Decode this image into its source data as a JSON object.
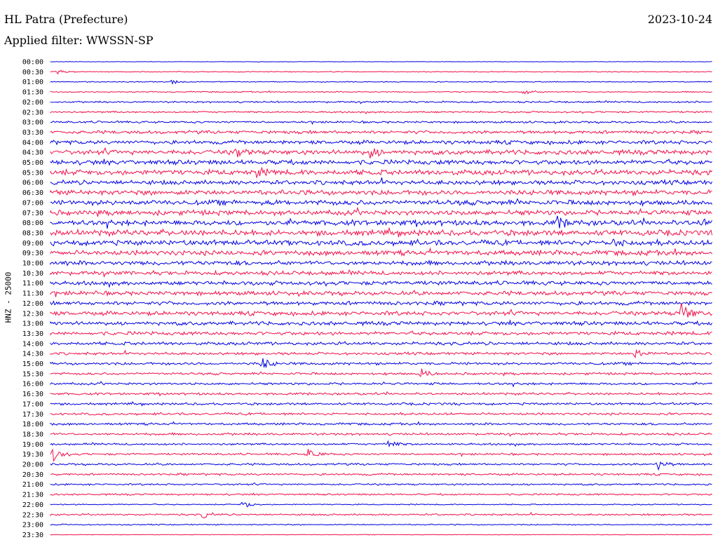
{
  "header": {
    "station": "HL Patra (Prefecture)",
    "date": "2023-10-24",
    "filter": "Applied filter: WWSSN-SP"
  },
  "chart_data": {
    "type": "line",
    "title": "HL Patra (Prefecture)",
    "subtitle": "Applied filter: WWSSN-SP",
    "ylabel": "HNZ - 25000",
    "xlabel": "",
    "x_range_minutes": [
      0,
      30
    ],
    "row_labels": [
      "00:00",
      "00:30",
      "01:00",
      "01:30",
      "02:00",
      "02:30",
      "03:00",
      "03:30",
      "04:00",
      "04:30",
      "05:00",
      "05:30",
      "06:00",
      "06:30",
      "07:00",
      "07:30",
      "08:00",
      "08:30",
      "09:00",
      "09:30",
      "10:00",
      "10:30",
      "11:00",
      "11:30",
      "12:00",
      "12:30",
      "13:00",
      "13:30",
      "14:00",
      "14:30",
      "15:00",
      "15:30",
      "16:00",
      "16:30",
      "17:00",
      "17:30",
      "18:00",
      "18:30",
      "19:00",
      "19:30",
      "20:00",
      "20:30",
      "21:00",
      "21:30",
      "22:00",
      "22:30",
      "23:00",
      "23:30"
    ],
    "noise_level": [
      0.3,
      0.6,
      0.6,
      0.8,
      1.2,
      1.2,
      1.4,
      2.2,
      2.6,
      3.2,
      3.2,
      3.6,
      3.0,
      3.4,
      3.4,
      3.4,
      3.6,
      3.8,
      3.6,
      3.4,
      3.0,
      2.8,
      2.8,
      2.8,
      2.6,
      2.8,
      2.6,
      2.4,
      2.2,
      1.8,
      1.8,
      1.6,
      1.6,
      1.6,
      1.6,
      1.6,
      1.6,
      1.6,
      1.4,
      1.4,
      1.4,
      1.4,
      1.2,
      1.2,
      0.8,
      1.2,
      0.8,
      0.4
    ],
    "events": [
      {
        "row": "00:30",
        "minute": 0.3,
        "amplitude": 3
      },
      {
        "row": "01:00",
        "minute": 5.5,
        "amplitude": 3
      },
      {
        "row": "01:30",
        "minute": 21.4,
        "amplitude": 5
      },
      {
        "row": "04:30",
        "minute": 8.4,
        "amplitude": 7
      },
      {
        "row": "04:30",
        "minute": 14.5,
        "amplitude": 8
      },
      {
        "row": "05:30",
        "minute": 9.3,
        "amplitude": 7
      },
      {
        "row": "08:00",
        "minute": 23.0,
        "amplitude": 9
      },
      {
        "row": "08:00",
        "minute": 29.5,
        "amplitude": 8
      },
      {
        "row": "09:00",
        "minute": 25.4,
        "amplitude": 7
      },
      {
        "row": "12:30",
        "minute": 28.6,
        "amplitude": 18
      },
      {
        "row": "14:30",
        "minute": 26.5,
        "amplitude": 8
      },
      {
        "row": "15:00",
        "minute": 9.6,
        "amplitude": 9
      },
      {
        "row": "15:30",
        "minute": 16.8,
        "amplitude": 7
      },
      {
        "row": "19:00",
        "minute": 15.3,
        "amplitude": 6
      },
      {
        "row": "19:30",
        "minute": 0.1,
        "amplitude": 10
      },
      {
        "row": "19:30",
        "minute": 11.7,
        "amplitude": 9
      },
      {
        "row": "20:00",
        "minute": 27.5,
        "amplitude": 9
      },
      {
        "row": "22:00",
        "minute": 8.7,
        "amplitude": 6
      },
      {
        "row": "22:30",
        "minute": 6.9,
        "amplitude": 5
      }
    ],
    "colors": [
      "#0000e0",
      "#f0104a"
    ],
    "grid": false,
    "legend": "none"
  }
}
